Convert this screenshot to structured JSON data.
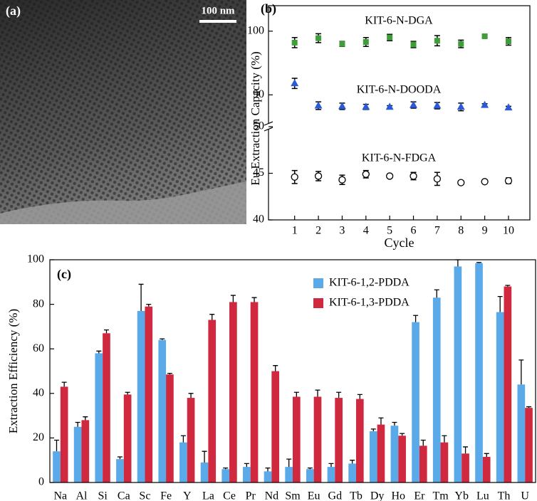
{
  "image": {
    "panel_label": "(a)",
    "scale_bar": "100 nm"
  },
  "chart_data": [
    {
      "type": "scatter",
      "panel_label": "(b)",
      "xlabel": "Cycle",
      "ylabel": "Eu Extraction Capacity (%)",
      "x": [
        1,
        2,
        3,
        4,
        5,
        6,
        7,
        8,
        9,
        10
      ],
      "xlim": [
        -0.1,
        10.9
      ],
      "xticks": [
        1,
        2,
        3,
        4,
        5,
        6,
        7,
        8,
        9,
        10
      ],
      "ylim": [
        40,
        104
      ],
      "ybreak": [
        50,
        85
      ],
      "yticks": [
        40,
        45,
        50,
        90,
        100
      ],
      "series": [
        {
          "name": "KIT-6-N-DGA",
          "color": "#3f9d3a",
          "marker": "square",
          "values": [
            98.2,
            98.9,
            98.0,
            98.3,
            99.0,
            97.9,
            98.5,
            98.0,
            99.2,
            98.4
          ],
          "errors": [
            0.8,
            0.7,
            0.4,
            0.7,
            0.5,
            0.5,
            0.8,
            0.6,
            0.2,
            0.6
          ]
        },
        {
          "name": "KIT-6-N-DOODA",
          "color": "#2a5ad8",
          "marker": "triangle",
          "values": [
            91.8,
            88.3,
            88.2,
            88.1,
            88.1,
            88.4,
            88.3,
            88.1,
            88.4,
            88.0
          ],
          "errors": [
            0.8,
            0.6,
            0.5,
            0.4,
            0.2,
            0.5,
            0.5,
            0.6,
            0.2,
            0.2
          ]
        },
        {
          "name": "KIT-6-N-FDGA",
          "color": "#000000",
          "marker": "open-circle",
          "values": [
            44.6,
            44.7,
            44.3,
            44.9,
            44.7,
            44.7,
            44.4,
            44.0,
            44.1,
            44.2
          ],
          "errors": [
            0.7,
            0.5,
            0.5,
            0.4,
            0.2,
            0.4,
            0.7,
            0.2,
            0.1,
            0.3
          ]
        }
      ]
    },
    {
      "type": "bar",
      "panel_label": "(c)",
      "ylabel": "Extraction Efficiency (%)",
      "legend": "upper center",
      "categories": [
        "Na",
        "Al",
        "Si",
        "Ca",
        "Sc",
        "Fe",
        "Y",
        "La",
        "Ce",
        "Pr",
        "Nd",
        "Sm",
        "Eu",
        "Gd",
        "Tb",
        "Dy",
        "Ho",
        "Er",
        "Tm",
        "Yb",
        "Lu",
        "Th",
        "U"
      ],
      "ylim": [
        0,
        100
      ],
      "yticks": [
        0,
        20,
        40,
        60,
        80,
        100
      ],
      "series": [
        {
          "name": "KIT-6-1,2-PDDA",
          "color": "#5aaaea",
          "values": [
            14,
            25,
            58,
            10.5,
            77,
            64,
            18,
            9,
            6,
            7,
            5,
            7,
            6,
            7,
            8.5,
            23,
            25.5,
            72,
            83,
            97,
            98.5,
            76.5,
            44
          ],
          "errors": [
            5,
            2,
            1,
            1,
            12,
            0.5,
            3,
            5,
            0.5,
            1.5,
            1.5,
            3.5,
            0.5,
            1.5,
            1.5,
            1,
            1.5,
            3,
            3.5,
            3,
            0.3,
            7,
            11
          ]
        },
        {
          "name": "KIT-6-1,3-PDDA",
          "color": "#d0283e",
          "values": [
            43,
            28,
            67,
            39.5,
            79,
            48.5,
            38,
            73,
            81,
            81,
            50,
            38.5,
            38.5,
            38,
            37.5,
            26,
            21,
            16.5,
            18,
            13,
            11.5,
            88,
            33.5
          ],
          "errors": [
            2,
            1.5,
            1.5,
            1,
            1,
            0.5,
            2,
            2.5,
            3,
            2,
            2.5,
            2,
            3,
            2.5,
            2,
            3,
            1,
            2.5,
            3,
            3,
            1.5,
            0.5,
            0.5
          ]
        }
      ]
    }
  ]
}
